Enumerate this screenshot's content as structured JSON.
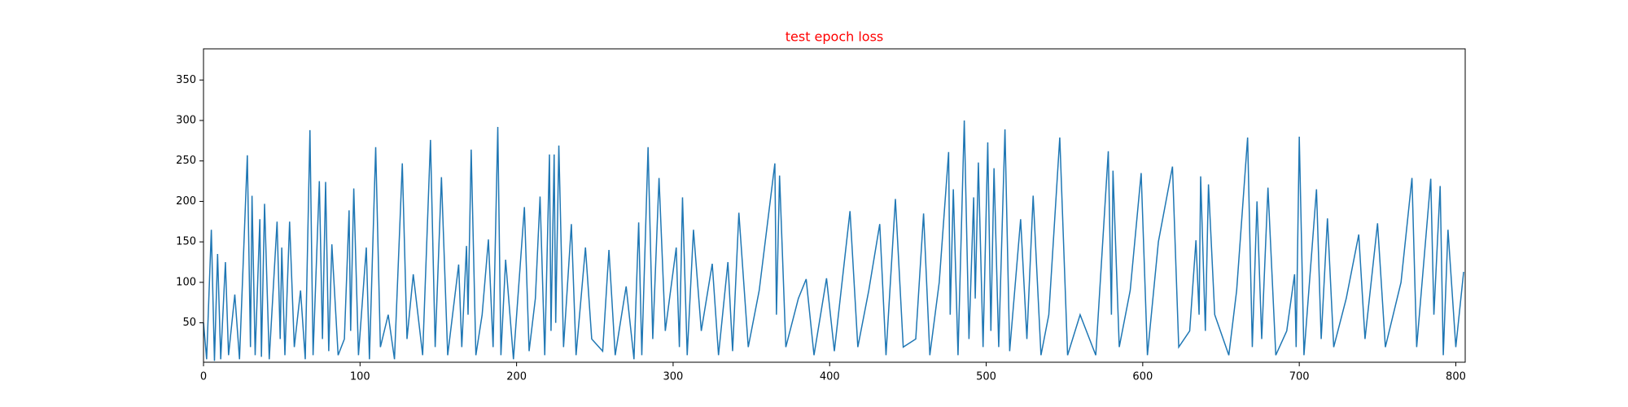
{
  "chart_data": {
    "type": "line",
    "title": "test epoch loss",
    "title_color": "#ff0000",
    "x": [
      0,
      2,
      5,
      7,
      9,
      11,
      14,
      16,
      20,
      23,
      28,
      30,
      31,
      33,
      36,
      37,
      39,
      42,
      47,
      49,
      50,
      52,
      55,
      58,
      62,
      65,
      68,
      70,
      74,
      76,
      78,
      80,
      82,
      86,
      90,
      93,
      94,
      96,
      99,
      104,
      106,
      110,
      113,
      118,
      122,
      127,
      130,
      134,
      140,
      145,
      148,
      152,
      156,
      163,
      165,
      168,
      169,
      171,
      174,
      178,
      182,
      185,
      188,
      190,
      193,
      198,
      205,
      208,
      212,
      215,
      218,
      221,
      222,
      224,
      225,
      227,
      230,
      235,
      238,
      244,
      248,
      255,
      259,
      263,
      270,
      275,
      278,
      280,
      284,
      287,
      291,
      295,
      302,
      304,
      306,
      309,
      313,
      318,
      325,
      329,
      335,
      338,
      342,
      348,
      355,
      365,
      366,
      368,
      372,
      380,
      385,
      390,
      398,
      403,
      413,
      418,
      425,
      432,
      436,
      442,
      447,
      455,
      460,
      464,
      470,
      476,
      477,
      479,
      482,
      486,
      489,
      492,
      493,
      495,
      498,
      501,
      503,
      505,
      508,
      512,
      515,
      522,
      526,
      530,
      535,
      540,
      547,
      552,
      560,
      570,
      578,
      580,
      581,
      585,
      592,
      599,
      603,
      610,
      619,
      623,
      630,
      634,
      636,
      637,
      640,
      642,
      646,
      655,
      660,
      667,
      670,
      673,
      676,
      680,
      685,
      692,
      697,
      698,
      700,
      703,
      711,
      714,
      718,
      722,
      730,
      738,
      742,
      750,
      755,
      765,
      772,
      775,
      784,
      786,
      790,
      792,
      795,
      800,
      805
    ],
    "series": [
      {
        "color": "#1f77b4",
        "values": [
          50,
          5,
          165,
          3,
          135,
          5,
          125,
          10,
          85,
          5,
          257,
          20,
          207,
          10,
          178,
          8,
          197,
          5,
          175,
          30,
          143,
          10,
          175,
          20,
          90,
          5,
          288,
          10,
          225,
          30,
          224,
          15,
          147,
          10,
          30,
          189,
          40,
          216,
          10,
          143,
          5,
          267,
          20,
          60,
          5,
          247,
          30,
          110,
          10,
          276,
          20,
          230,
          10,
          122,
          20,
          145,
          60,
          264,
          10,
          60,
          153,
          20,
          292,
          10,
          128,
          5,
          193,
          15,
          80,
          206,
          10,
          258,
          40,
          258,
          50,
          269,
          20,
          172,
          10,
          143,
          30,
          15,
          140,
          10,
          95,
          5,
          174,
          10,
          267,
          30,
          229,
          40,
          143,
          20,
          205,
          10,
          165,
          40,
          123,
          10,
          125,
          15,
          186,
          20,
          90,
          247,
          60,
          232,
          20,
          80,
          104,
          10,
          105,
          15,
          188,
          20,
          90,
          172,
          10,
          203,
          20,
          30,
          185,
          10,
          100,
          261,
          60,
          215,
          10,
          300,
          30,
          205,
          80,
          248,
          20,
          273,
          40,
          241,
          20,
          289,
          15,
          178,
          30,
          207,
          10,
          60,
          279,
          10,
          60,
          10,
          262,
          60,
          238,
          20,
          90,
          235,
          10,
          150,
          243,
          20,
          40,
          152,
          60,
          231,
          40,
          221,
          60,
          10,
          90,
          279,
          20,
          200,
          30,
          217,
          10,
          40,
          110,
          20,
          280,
          10,
          215,
          30,
          179,
          20,
          80,
          159,
          30,
          173,
          20,
          100,
          229,
          20,
          228,
          60,
          219,
          10,
          165,
          20,
          113
        ]
      }
    ],
    "xlim": [
      0,
      806
    ],
    "ylim": [
      1.3,
      388.5
    ],
    "xticks": [
      0,
      100,
      200,
      300,
      400,
      500,
      600,
      700,
      800
    ],
    "yticks": [
      50,
      100,
      150,
      200,
      250,
      300,
      350
    ]
  }
}
